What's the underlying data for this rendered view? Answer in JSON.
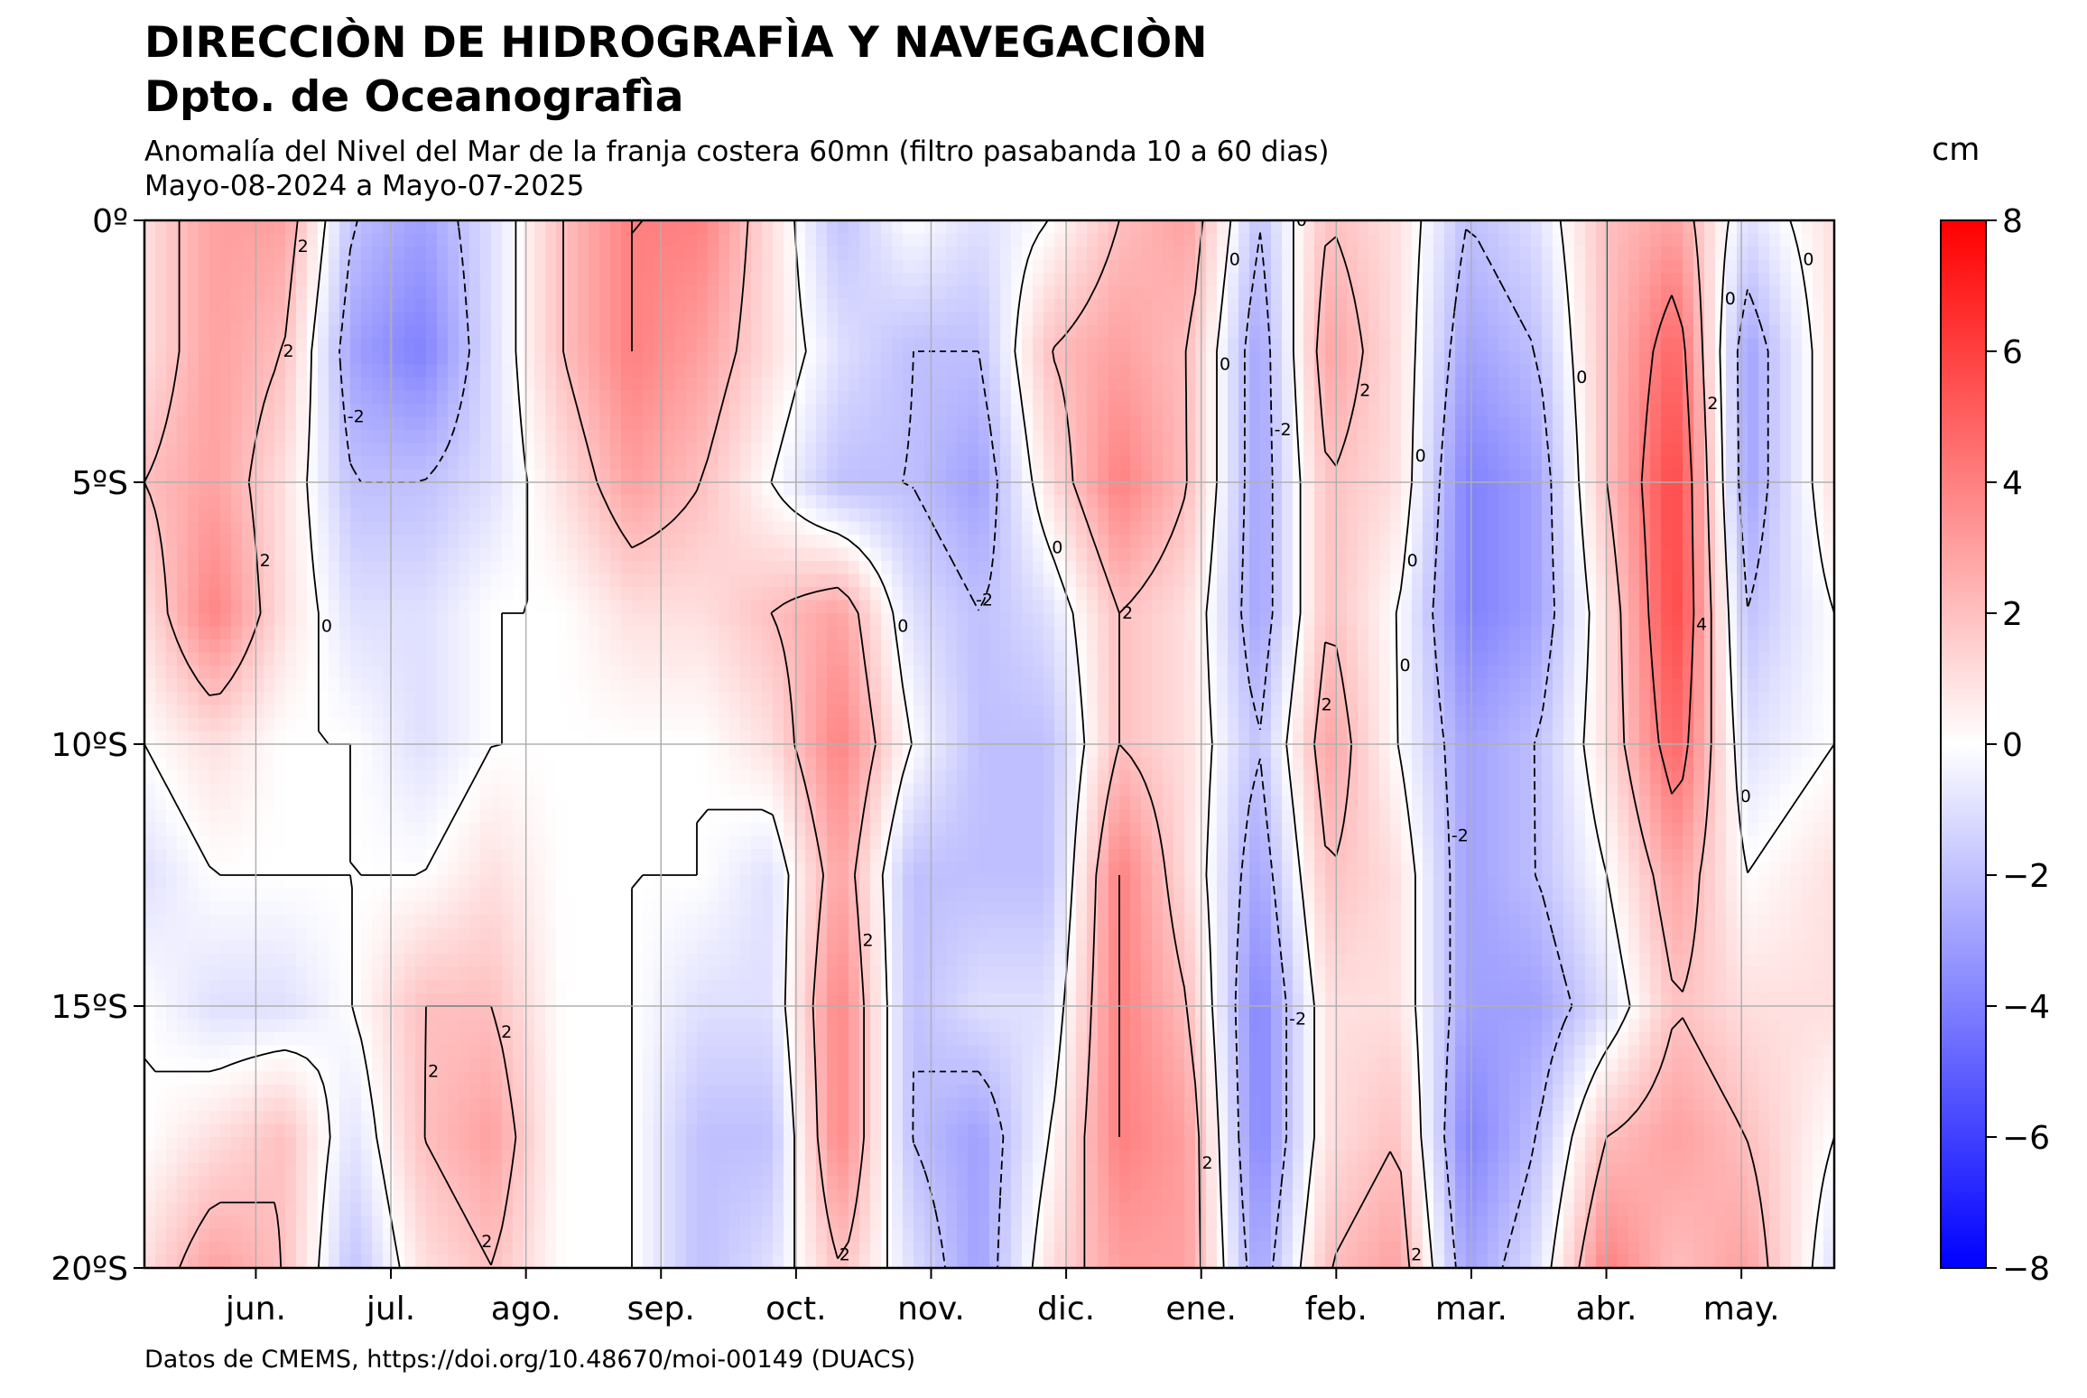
{
  "header": {
    "title1": "DIRECCIÒN DE HIDROGRAFÌA Y NAVEGACIÒN",
    "title2": "Dpto. de Oceanografìa",
    "subtitle1": "Anomalía del Nivel del Mar de la franja costera 60mn (filtro pasabanda 10 a 60 dias)",
    "subtitle2": "Mayo-08-2024 a Mayo-07-2025"
  },
  "footer": {
    "credit": "Datos de CMEMS, https://doi.org/10.48670/moi-00149 (DUACS)"
  },
  "colorbar": {
    "unit": "cm",
    "ticks": [
      "8",
      "6",
      "4",
      "2",
      "0",
      "−2",
      "−4",
      "−6",
      "−8"
    ],
    "range": [
      -8,
      8
    ],
    "colors": {
      "high": "#ff0000",
      "mid": "#ffffff",
      "low": "#0000ff"
    }
  },
  "chart_data": {
    "type": "heatmap",
    "title": "Anomalía del Nivel del Mar de la franja costera 60mn (filtro pasabanda 10 a 60 dias)",
    "x_axis": {
      "ticks": [
        "jun.",
        "jul.",
        "ago.",
        "sep.",
        "oct.",
        "nov.",
        "dic.",
        "ene.",
        "feb.",
        "mar.",
        "abr.",
        "may."
      ],
      "range": [
        "2024-05-08",
        "2025-05-07"
      ]
    },
    "y_axis": {
      "ticks": [
        "0º",
        "5ºS",
        "10ºS",
        "15ºS",
        "20ºS"
      ],
      "range": [
        0,
        -20
      ]
    },
    "grid": true,
    "contour_levels": [
      -4,
      -2,
      0,
      2,
      4
    ],
    "x_days": [
      0,
      15,
      30,
      45,
      60,
      75,
      90,
      105,
      120,
      135,
      150,
      165,
      180,
      195,
      210,
      225,
      240,
      255,
      270,
      285,
      300,
      315,
      330,
      345,
      364
    ],
    "y_lat": [
      0,
      -2.5,
      -5,
      -7.5,
      -10,
      -12.5,
      -15,
      -17.5,
      -20
    ],
    "z": [
      [
        1,
        3,
        3,
        -2,
        -3,
        -1,
        2,
        4,
        4,
        1,
        -2,
        0,
        -1,
        0,
        2,
        3,
        -2,
        2,
        1,
        -2,
        -1,
        2,
        3,
        -1,
        1
      ],
      [
        1,
        3,
        2,
        -3,
        -4,
        -1,
        2,
        4,
        3,
        1,
        -1,
        -2,
        -2,
        2,
        3,
        2,
        -3,
        3,
        1,
        -3,
        -2,
        2,
        5,
        -3,
        1
      ],
      [
        2,
        3,
        1,
        -2,
        -2,
        -1,
        1,
        3,
        2,
        0,
        -2,
        -2,
        -3,
        1,
        4,
        2,
        -3,
        2,
        1,
        -4,
        -3,
        2,
        6,
        -3,
        1
      ],
      [
        1,
        4,
        1,
        -1,
        -1,
        0,
        0,
        1,
        1,
        2,
        3,
        -1,
        -2,
        -1,
        2,
        1,
        -3,
        2,
        0,
        -4,
        -3,
        1,
        6,
        -2,
        0
      ],
      [
        0,
        1,
        0,
        0,
        -1,
        0,
        0,
        0,
        0,
        1,
        4,
        0,
        -2,
        -2,
        2,
        1,
        -2,
        3,
        0,
        -3,
        -2,
        1,
        5,
        -1,
        0
      ],
      [
        -1,
        0,
        0,
        0,
        0,
        1,
        0,
        0,
        0,
        -1,
        3,
        -2,
        -2,
        -2,
        4,
        1,
        -3,
        2,
        1,
        -3,
        -2,
        0,
        3,
        0,
        1
      ],
      [
        0,
        -1,
        -1,
        0,
        2,
        2,
        0,
        0,
        -1,
        -1,
        4,
        -2,
        -1,
        -1,
        4,
        2,
        -4,
        1,
        1,
        -3,
        -3,
        -1,
        2,
        1,
        1
      ],
      [
        0,
        1,
        2,
        -1,
        2,
        3,
        0,
        0,
        -2,
        -2,
        4,
        -2,
        -3,
        0,
        4,
        3,
        -4,
        1,
        2,
        -4,
        -2,
        2,
        3,
        2,
        0
      ],
      [
        1,
        3,
        2,
        -2,
        1,
        2,
        0,
        0,
        -2,
        -1,
        2,
        -1,
        -3,
        1,
        3,
        3,
        -3,
        2,
        3,
        -3,
        -1,
        4,
        2,
        3,
        -1
      ]
    ]
  }
}
